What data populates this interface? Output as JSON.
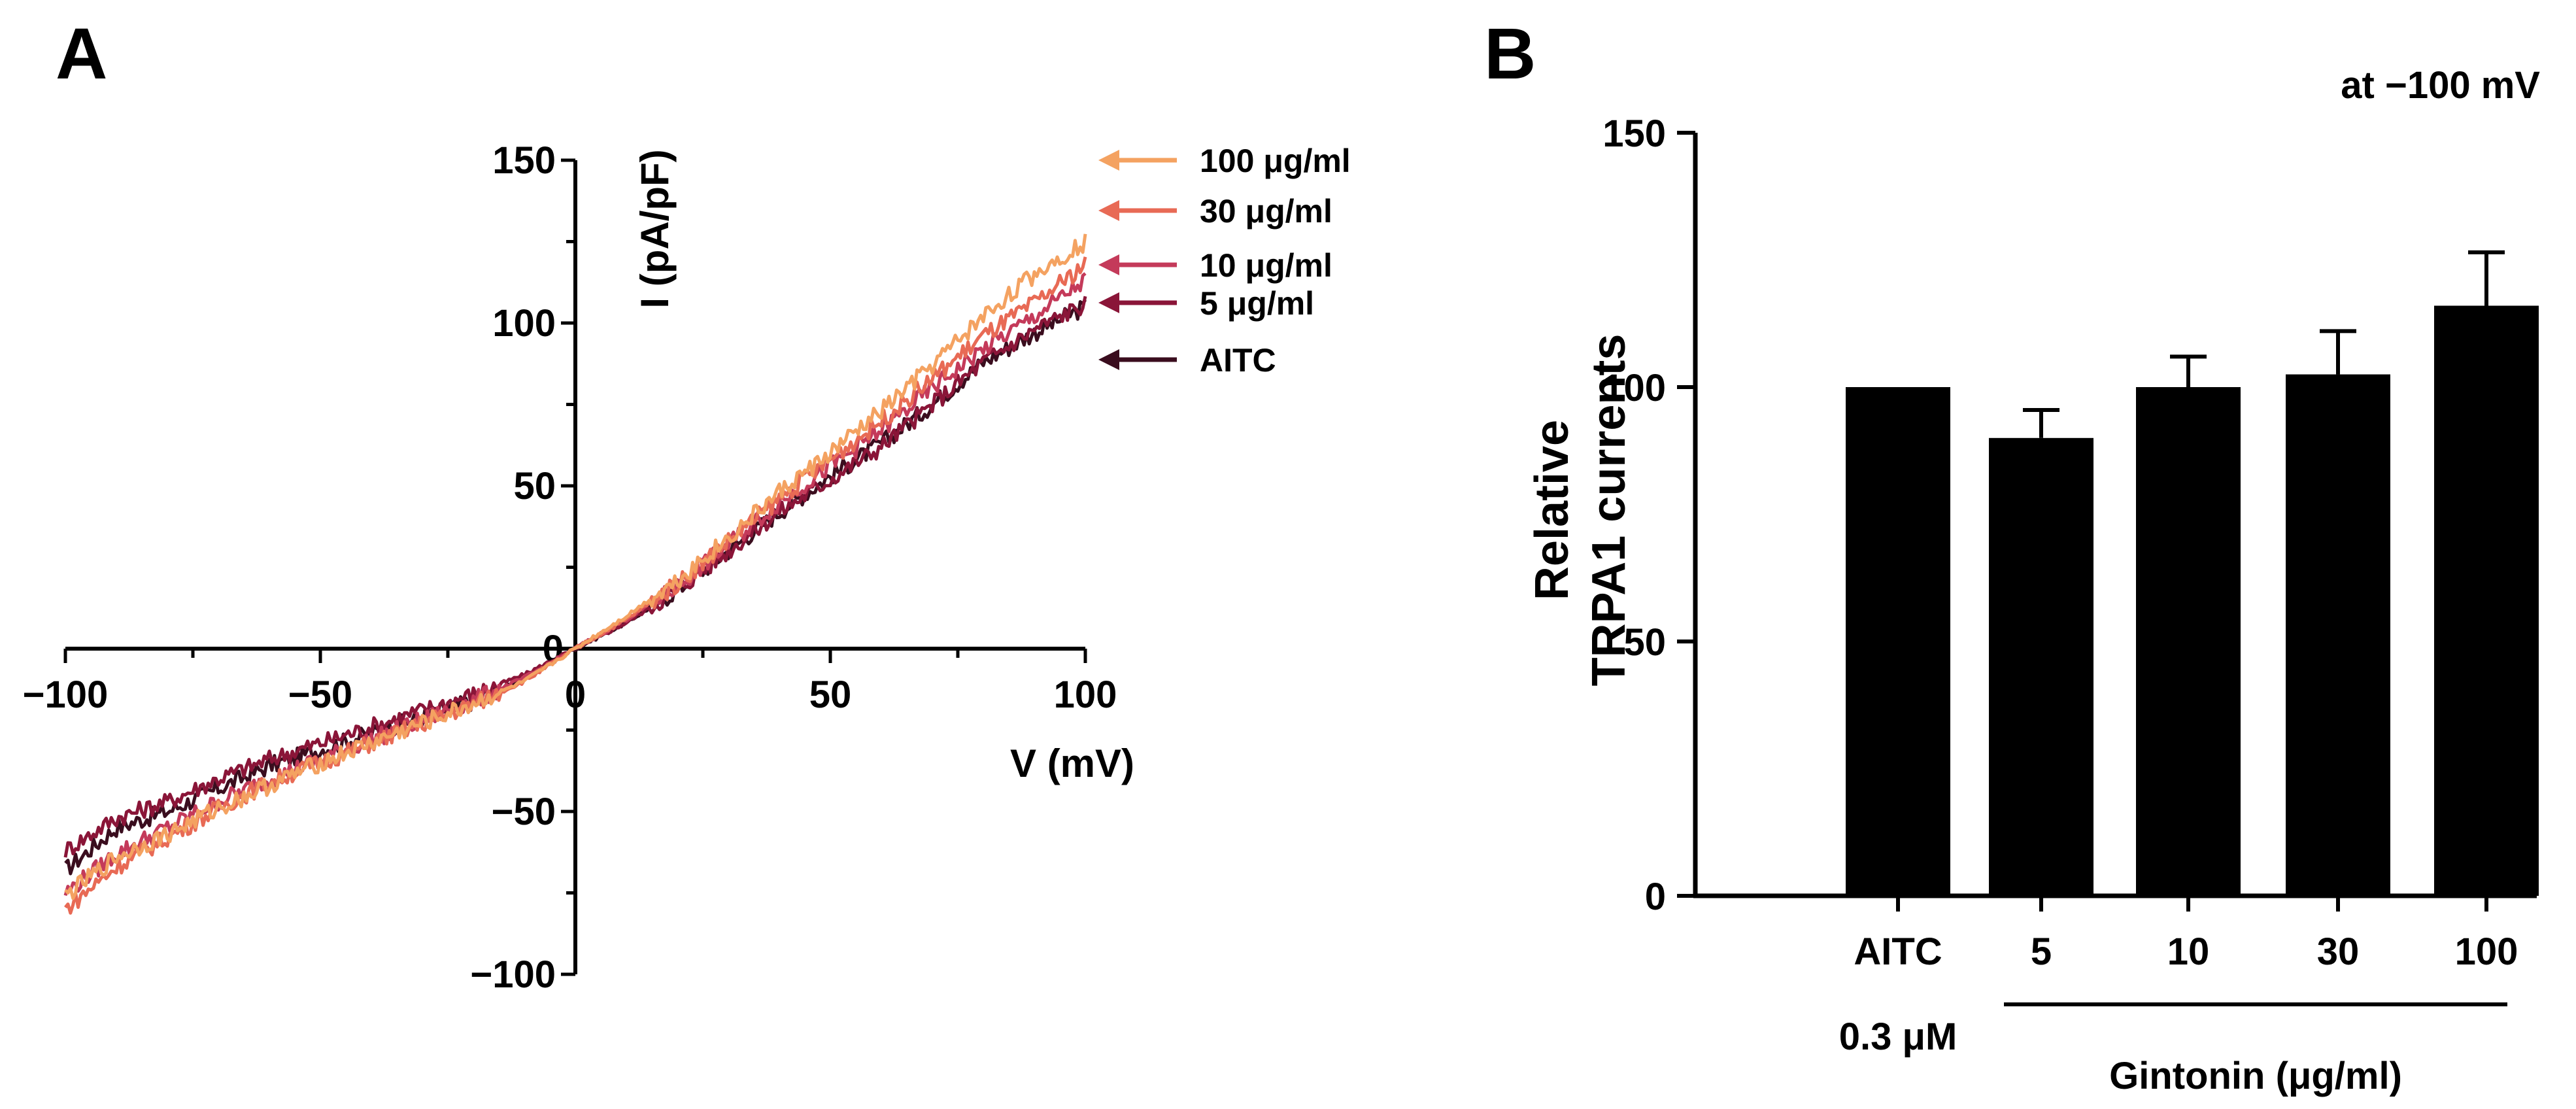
{
  "chart_data": [
    {
      "panel": "A",
      "type": "line",
      "title": "",
      "xlabel": "V (mV)",
      "ylabel": "I (pA/pF)",
      "xlim": [
        -100,
        100
      ],
      "ylim": [
        -100,
        150
      ],
      "xticks": [
        -100,
        -50,
        0,
        50,
        100
      ],
      "yticks": [
        -100,
        -50,
        0,
        50,
        100,
        150
      ],
      "xtick_labels": [
        "−100",
        "−50",
        "0",
        "50",
        "100"
      ],
      "ytick_labels": [
        "−100",
        "−50",
        "0",
        "50",
        "100",
        "150"
      ],
      "legend_position": "right",
      "x": [
        -100,
        -90,
        -80,
        -70,
        -60,
        -50,
        -40,
        -30,
        -20,
        -10,
        0,
        10,
        20,
        30,
        40,
        50,
        60,
        70,
        80,
        90,
        100
      ],
      "series": [
        {
          "name": "AITC",
          "legend": "AITC",
          "color": "#3a0d1e",
          "values": [
            -68,
            -55,
            -50,
            -43,
            -36,
            -31,
            -26,
            -21,
            -16,
            -9,
            0,
            8,
            18,
            30,
            42,
            53,
            63,
            75,
            88,
            97,
            105
          ]
        },
        {
          "name": "5 μg/ml",
          "legend": "5 μg/ml",
          "color": "#8a1538",
          "values": [
            -62,
            -52,
            -47,
            -40,
            -34,
            -29,
            -24,
            -19,
            -14,
            -8,
            0,
            8,
            18,
            30,
            42,
            52,
            62,
            75,
            88,
            98,
            106
          ]
        },
        {
          "name": "10 μg/ml",
          "legend": "10 μg/ml",
          "color": "#c43a5a",
          "values": [
            -75,
            -63,
            -55,
            -47,
            -40,
            -34,
            -28,
            -22,
            -16,
            -9,
            0,
            9,
            19,
            32,
            45,
            56,
            67,
            80,
            92,
            102,
            113
          ]
        },
        {
          "name": "30 μg/ml",
          "legend": "30 μg/ml",
          "color": "#e86a55",
          "values": [
            -80,
            -67,
            -58,
            -49,
            -41,
            -35,
            -29,
            -23,
            -17,
            -10,
            0,
            9,
            20,
            33,
            46,
            58,
            70,
            83,
            96,
            106,
            118
          ]
        },
        {
          "name": "100 μg/ml",
          "legend": "100 μg/ml",
          "color": "#f4a261",
          "values": [
            -76,
            -64,
            -57,
            -49,
            -42,
            -35,
            -29,
            -23,
            -17,
            -10,
            0,
            10,
            21,
            34,
            48,
            60,
            73,
            87,
            102,
            115,
            125
          ]
        }
      ]
    },
    {
      "panel": "B",
      "type": "bar",
      "title": "at −100 mV",
      "ylabel_line1": "Relative",
      "ylabel_line2": "TRPA1 currents",
      "ylim": [
        0,
        150
      ],
      "yticks": [
        0,
        50,
        100,
        150
      ],
      "ytick_labels": [
        "0",
        "50",
        "100",
        "150"
      ],
      "categories": [
        "AITC",
        "5",
        "10",
        "30",
        "100"
      ],
      "values": [
        100,
        90,
        100,
        102.5,
        116
      ],
      "errors": [
        0,
        5.5,
        6,
        8.5,
        10.5
      ],
      "bar_color": "#000000",
      "aitc_concentration": "0.3 μM",
      "group_label": "Gintonin (μg/ml)"
    }
  ]
}
